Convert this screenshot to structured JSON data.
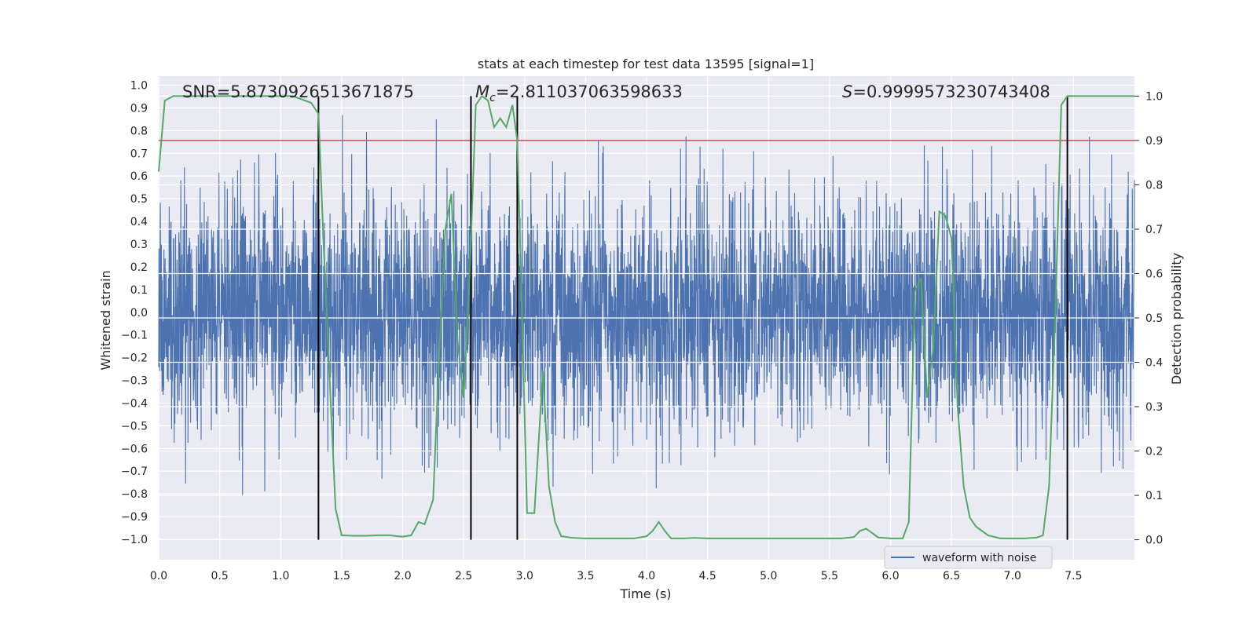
{
  "chart_data": {
    "type": "line",
    "title": "stats at each timestep for test data 13595 [signal=1]",
    "xlabel": "Time (s)",
    "ylabel": "Whitened strain",
    "y2label": "Detection probability",
    "xlim": [
      0.0,
      8.0
    ],
    "ylim": [
      -1.09,
      1.04
    ],
    "y2lim": [
      -0.045,
      1.045
    ],
    "xticks": [
      "0.0",
      "0.5",
      "1.0",
      "1.5",
      "2.0",
      "2.5",
      "3.0",
      "3.5",
      "4.0",
      "4.5",
      "5.0",
      "5.5",
      "6.0",
      "6.5",
      "7.0",
      "7.5"
    ],
    "yticks": [
      "1.0",
      "0.9",
      "0.8",
      "0.7",
      "0.6",
      "0.5",
      "0.4",
      "0.3",
      "0.2",
      "0.1",
      "0.0",
      "−0.1",
      "−0.2",
      "−0.3",
      "−0.4",
      "−0.5",
      "−0.6",
      "−0.7",
      "−0.8",
      "−0.9",
      "−1.0"
    ],
    "y2ticks": [
      "1.0",
      "0.9",
      "0.8",
      "0.7",
      "0.6",
      "0.5",
      "0.4",
      "0.3",
      "0.2",
      "0.1",
      "0.0"
    ],
    "annotations": {
      "snr": "SNR=5.8730926513671875",
      "mc_symbol": "M",
      "mc_sub": "c",
      "mc_value": "=2.811037063598633",
      "s_symbol": "S",
      "s_value": "=0.9999573230743408"
    },
    "legend": {
      "label": "waveform with noise",
      "position": "lower-right"
    },
    "threshold": 0.9,
    "threshold_color": "#c44e52",
    "vertical_lines_time": [
      1.31,
      2.56,
      2.94,
      7.45
    ],
    "waveform": {
      "name": "waveform with noise",
      "color": "#4c72b0",
      "t_start": 0.0,
      "t_end": 8.0,
      "n_points": 4096,
      "seed": 13595
    },
    "probability": {
      "name": "detection probability",
      "color": "#55a868",
      "x": [
        0.0,
        0.05,
        0.12,
        0.2,
        0.3,
        0.4,
        0.5,
        0.6,
        0.7,
        0.8,
        0.9,
        1.0,
        1.1,
        1.15,
        1.25,
        1.31,
        1.35,
        1.45,
        1.5,
        1.6,
        1.7,
        1.8,
        1.9,
        1.95,
        2.0,
        2.07,
        2.13,
        2.18,
        2.25,
        2.3,
        2.35,
        2.4,
        2.45,
        2.5,
        2.55,
        2.6,
        2.65,
        2.7,
        2.75,
        2.8,
        2.85,
        2.9,
        2.94,
        2.98,
        3.02,
        3.08,
        3.15,
        3.2,
        3.25,
        3.3,
        3.35,
        3.4,
        3.5,
        3.6,
        3.7,
        3.8,
        3.9,
        4.0,
        4.05,
        4.1,
        4.15,
        4.2,
        4.3,
        4.4,
        4.5,
        4.6,
        4.7,
        4.8,
        5.0,
        5.2,
        5.4,
        5.5,
        5.6,
        5.7,
        5.75,
        5.8,
        5.85,
        5.9,
        6.0,
        6.1,
        6.15,
        6.2,
        6.25,
        6.3,
        6.35,
        6.4,
        6.45,
        6.5,
        6.55,
        6.6,
        6.65,
        6.7,
        6.75,
        6.8,
        6.9,
        7.0,
        7.1,
        7.2,
        7.25,
        7.3,
        7.35,
        7.4,
        7.45,
        7.5,
        7.55,
        7.6,
        7.7,
        7.8,
        7.9,
        8.0
      ],
      "y": [
        0.83,
        0.99,
        1.0,
        1.0,
        1.0,
        1.0,
        1.0,
        1.0,
        1.0,
        1.0,
        1.0,
        1.0,
        1.0,
        0.995,
        0.985,
        0.96,
        0.68,
        0.07,
        0.01,
        0.009,
        0.009,
        0.01,
        0.01,
        0.008,
        0.007,
        0.01,
        0.04,
        0.035,
        0.09,
        0.42,
        0.7,
        0.78,
        0.45,
        0.32,
        0.6,
        0.98,
        1.0,
        0.99,
        0.93,
        0.95,
        0.93,
        0.98,
        0.9,
        0.5,
        0.06,
        0.06,
        0.38,
        0.12,
        0.04,
        0.008,
        0.006,
        0.004,
        0.003,
        0.003,
        0.003,
        0.003,
        0.003,
        0.008,
        0.02,
        0.04,
        0.02,
        0.003,
        0.003,
        0.004,
        0.003,
        0.003,
        0.003,
        0.003,
        0.003,
        0.003,
        0.003,
        0.003,
        0.003,
        0.006,
        0.02,
        0.025,
        0.015,
        0.005,
        0.003,
        0.003,
        0.04,
        0.56,
        0.59,
        0.32,
        0.43,
        0.74,
        0.73,
        0.68,
        0.3,
        0.12,
        0.05,
        0.03,
        0.02,
        0.01,
        0.003,
        0.003,
        0.003,
        0.005,
        0.01,
        0.12,
        0.5,
        0.98,
        1.0,
        1.0,
        1.0,
        1.0,
        1.0,
        1.0,
        1.0,
        1.0
      ]
    }
  }
}
